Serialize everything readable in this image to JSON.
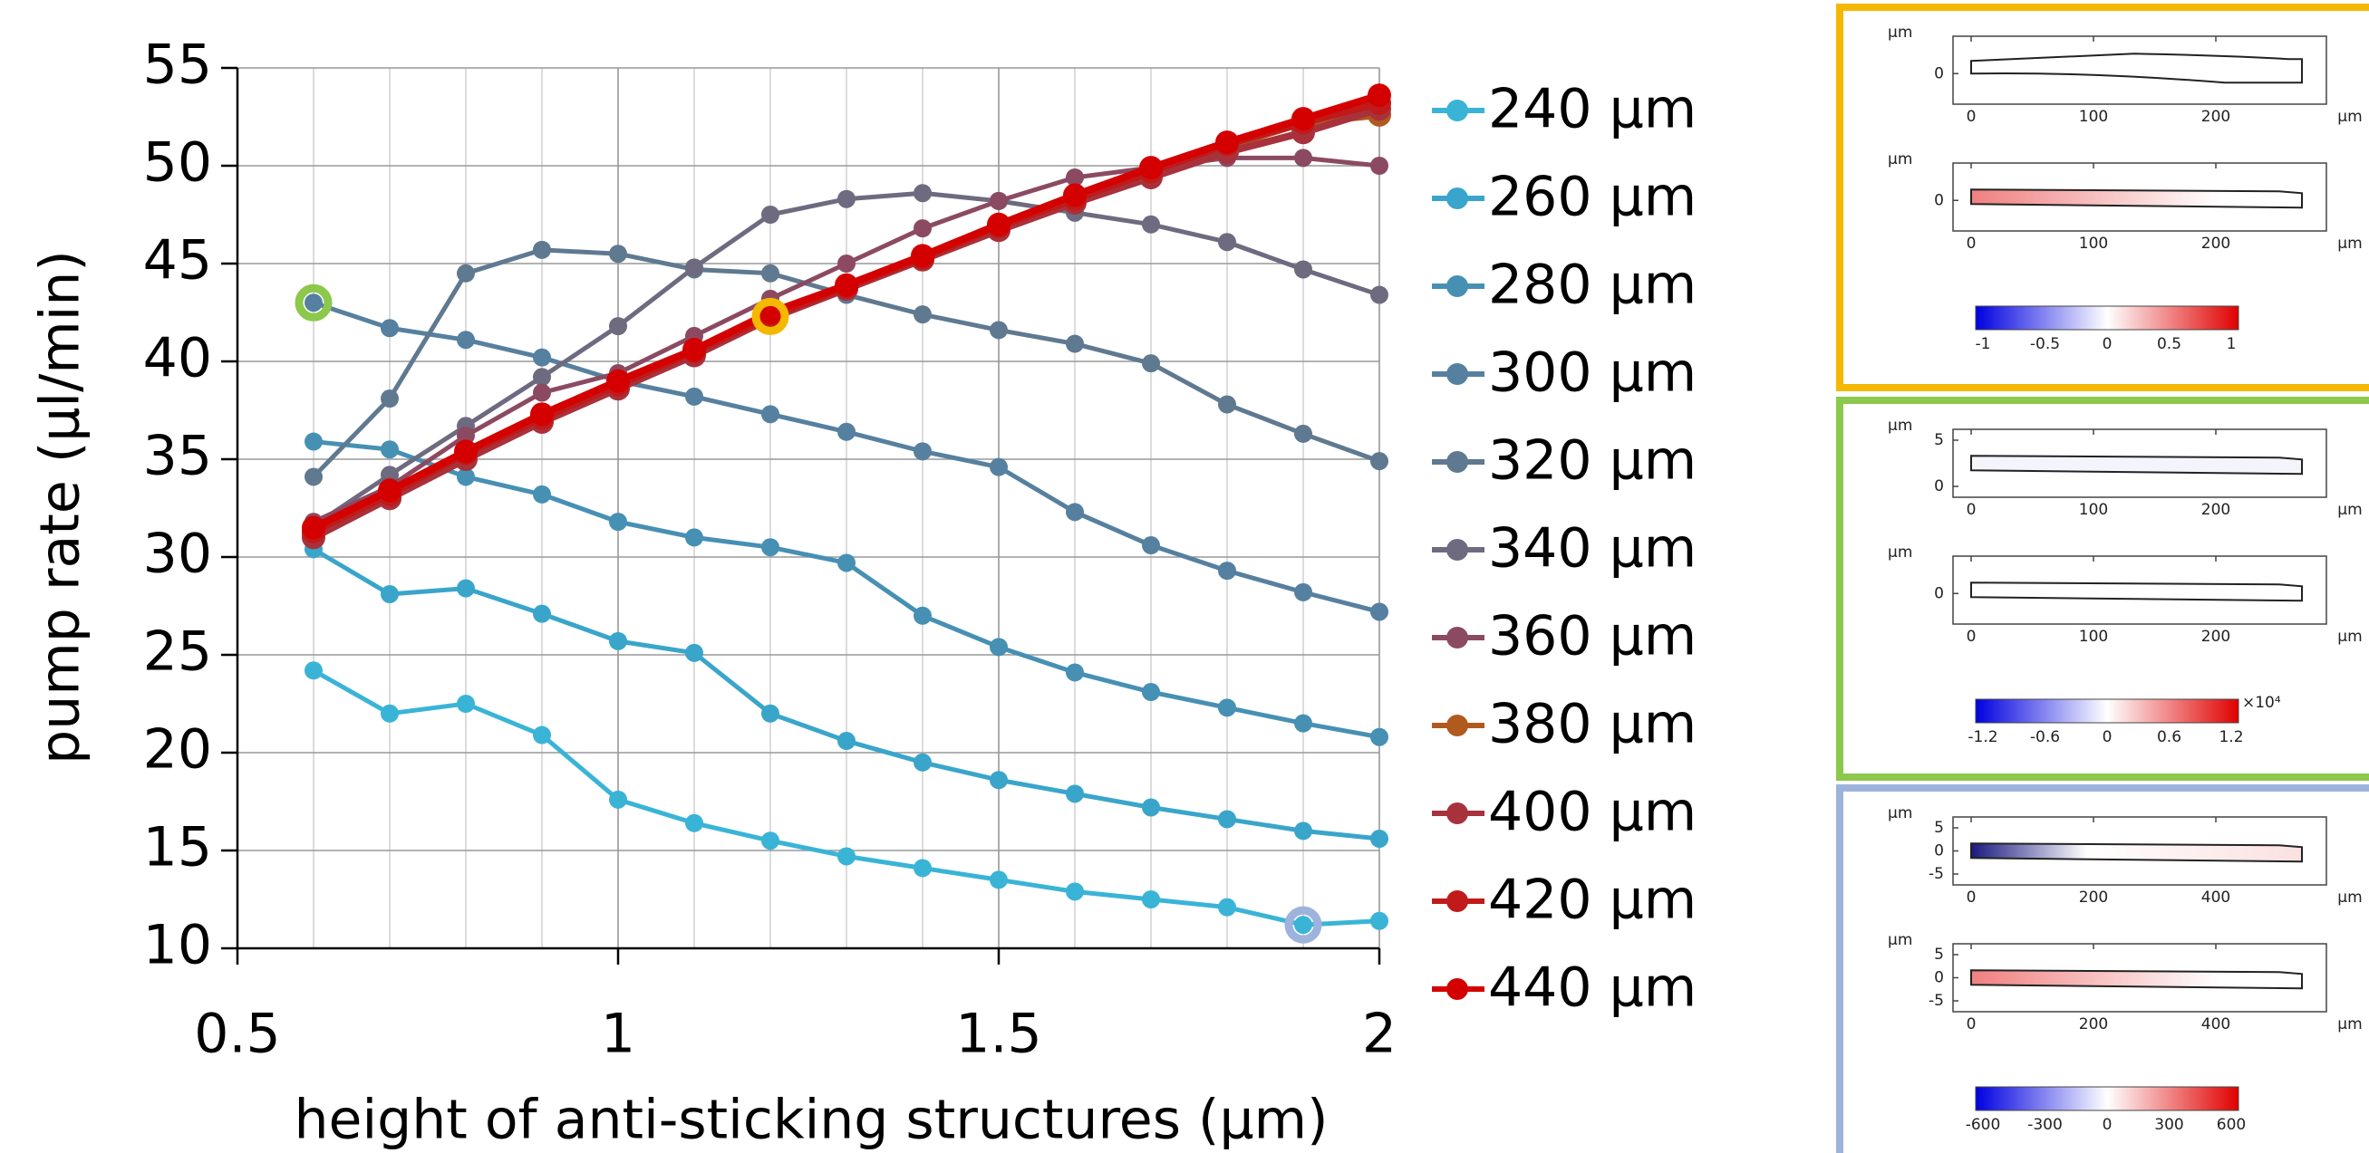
{
  "chart_data": {
    "type": "line",
    "xlabel": "height of anti-sticking structures (μm)",
    "ylabel": "pump rate (μl/min)",
    "x": [
      0.6,
      0.7,
      0.8,
      0.9,
      1.0,
      1.1,
      1.2,
      1.3,
      1.4,
      1.5,
      1.6,
      1.7,
      1.8,
      1.9,
      2.0
    ],
    "xlim": [
      0.5,
      2
    ],
    "xticks": [
      0.5,
      1,
      1.5,
      2
    ],
    "ylim": [
      10,
      55
    ],
    "yticks": [
      10,
      15,
      20,
      25,
      30,
      35,
      40,
      45,
      50,
      55
    ],
    "grid": true,
    "series": [
      {
        "name": "240 μm",
        "color": "#3ab4d6",
        "values": [
          24.2,
          22.0,
          22.5,
          20.9,
          17.6,
          16.4,
          15.5,
          14.7,
          14.1,
          13.5,
          12.9,
          12.5,
          12.1,
          11.2,
          11.4
        ]
      },
      {
        "name": "260 μm",
        "color": "#3aa5cb",
        "values": [
          30.4,
          28.1,
          28.4,
          27.1,
          25.7,
          25.1,
          22.0,
          20.6,
          19.5,
          18.6,
          17.9,
          17.2,
          16.6,
          16.0,
          15.6
        ]
      },
      {
        "name": "280 μm",
        "color": "#4690b4",
        "values": [
          35.9,
          35.5,
          34.1,
          33.2,
          31.8,
          31.0,
          30.5,
          29.7,
          27.0,
          25.4,
          24.1,
          23.1,
          22.3,
          21.5,
          20.8
        ]
      },
      {
        "name": "300 μm",
        "color": "#56809f",
        "values": [
          43.0,
          41.7,
          41.1,
          40.2,
          39.0,
          38.2,
          37.3,
          36.4,
          35.4,
          34.6,
          32.3,
          30.6,
          29.3,
          28.2,
          27.2
        ]
      },
      {
        "name": "320 μm",
        "color": "#5f7990",
        "values": [
          34.1,
          38.1,
          44.5,
          45.7,
          45.5,
          44.7,
          44.5,
          43.4,
          42.4,
          41.6,
          40.9,
          39.9,
          37.8,
          36.3,
          34.9
        ]
      },
      {
        "name": "340 μm",
        "color": "#6e6a80",
        "values": [
          31.6,
          34.2,
          36.7,
          39.2,
          41.8,
          44.8,
          47.5,
          48.3,
          48.6,
          48.2,
          47.6,
          47.0,
          46.1,
          44.7,
          43.4
        ]
      },
      {
        "name": "360 μm",
        "color": "#8c4a62",
        "values": [
          31.8,
          33.6,
          36.2,
          38.4,
          39.4,
          41.3,
          43.2,
          45.0,
          46.8,
          48.2,
          49.4,
          49.9,
          50.4,
          50.4,
          50.0
        ]
      },
      {
        "name": "380 μm",
        "color": "#b05a1e",
        "values": [
          31.2,
          33.0,
          35.1,
          37.0,
          38.7,
          40.4,
          42.2,
          43.8,
          45.2,
          46.8,
          48.2,
          49.6,
          51.0,
          52.2,
          52.6
        ]
      },
      {
        "name": "400 μm",
        "color": "#a8323c",
        "values": [
          31.0,
          33.0,
          35.0,
          36.9,
          38.6,
          40.3,
          42.2,
          43.7,
          45.2,
          46.7,
          48.1,
          49.4,
          50.7,
          51.7,
          52.9
        ]
      },
      {
        "name": "420 μm",
        "color": "#c01a1a",
        "values": [
          31.3,
          33.2,
          35.3,
          37.1,
          38.8,
          40.5,
          42.3,
          43.8,
          45.3,
          46.9,
          48.3,
          49.7,
          51.1,
          52.2,
          53.2
        ]
      },
      {
        "name": "440 μm",
        "color": "#d40000",
        "values": [
          31.5,
          33.4,
          35.4,
          37.3,
          39.0,
          40.6,
          42.5,
          43.9,
          45.4,
          47.0,
          48.5,
          49.9,
          51.2,
          52.4,
          53.6
        ]
      }
    ]
  },
  "panels": [
    {
      "color": "#f5b800",
      "plots": [
        {
          "y_unit": "μm",
          "yticks": [
            "0"
          ],
          "xticks": [
            "0",
            "100",
            "200"
          ],
          "x_unit": "μm"
        },
        {
          "y_unit": "μm",
          "yticks": [
            "0"
          ],
          "xticks": [
            "0",
            "100",
            "200"
          ],
          "x_unit": "μm"
        }
      ],
      "colorbar": {
        "ticks": [
          "-1",
          "-0.5",
          "0",
          "0.5",
          "1"
        ]
      }
    },
    {
      "color": "#8cc84b",
      "plots": [
        {
          "y_unit": "μm",
          "yticks": [
            "5",
            "0"
          ],
          "xticks": [
            "0",
            "100",
            "200"
          ],
          "x_unit": "μm"
        },
        {
          "y_unit": "μm",
          "yticks": [
            "0"
          ],
          "xticks": [
            "0",
            "100",
            "200"
          ],
          "x_unit": "μm"
        }
      ],
      "colorbar": {
        "ticks": [
          "-1.2",
          "-0.6",
          "0",
          "0.6",
          "1.2"
        ],
        "multiplier": "×10⁴"
      }
    },
    {
      "color": "#9db3dc",
      "plots": [
        {
          "y_unit": "μm",
          "yticks": [
            "5",
            "0",
            "-5"
          ],
          "xticks": [
            "0",
            "200",
            "400"
          ],
          "x_unit": "μm"
        },
        {
          "y_unit": "μm",
          "yticks": [
            "5",
            "0",
            "-5"
          ],
          "xticks": [
            "0",
            "200",
            "400"
          ],
          "x_unit": "μm"
        }
      ],
      "colorbar": {
        "ticks": [
          "-600",
          "-300",
          "0",
          "300",
          "600"
        ]
      }
    }
  ]
}
